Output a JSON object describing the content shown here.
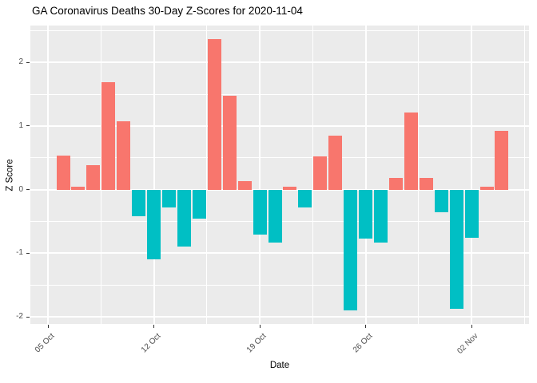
{
  "title": "GA Coronavirus Deaths 30-Day Z-Scores for 2020-11-04",
  "chart_data": {
    "type": "bar",
    "title": "GA Coronavirus Deaths 30-Day Z-Scores for 2020-11-04",
    "xlabel": "Date",
    "ylabel": "Z Score",
    "ylim": [
      -2.11,
      2.58
    ],
    "grid": true,
    "legend": "none",
    "y_major_ticks": [
      -2,
      -1,
      0,
      1,
      2
    ],
    "x_tick_labels": [
      "05 Oct",
      "12 Oct",
      "19 Oct",
      "26 Oct",
      "02 Nov"
    ],
    "x_tick_day_indices": [
      -1,
      6,
      13,
      20,
      27
    ],
    "dates": [
      "2020-10-06",
      "2020-10-07",
      "2020-10-08",
      "2020-10-09",
      "2020-10-10",
      "2020-10-11",
      "2020-10-12",
      "2020-10-13",
      "2020-10-14",
      "2020-10-15",
      "2020-10-16",
      "2020-10-17",
      "2020-10-18",
      "2020-10-19",
      "2020-10-20",
      "2020-10-21",
      "2020-10-22",
      "2020-10-23",
      "2020-10-24",
      "2020-10-25",
      "2020-10-26",
      "2020-10-27",
      "2020-10-28",
      "2020-10-29",
      "2020-10-30",
      "2020-10-31",
      "2020-11-01",
      "2020-11-02",
      "2020-11-03",
      "2020-11-04"
    ],
    "values": [
      0.53,
      0.05,
      0.39,
      1.69,
      1.08,
      -0.42,
      -1.1,
      -0.28,
      -0.89,
      -0.45,
      2.37,
      1.48,
      0.13,
      -0.7,
      -0.83,
      0.05,
      -0.28,
      0.52,
      0.85,
      -1.9,
      -0.77,
      -0.83,
      0.18,
      1.21,
      0.19,
      -0.35,
      -1.87,
      -0.76,
      0.05,
      0.93
    ],
    "positive_color": "#F8766D",
    "negative_color": "#00BFC4",
    "panel_background": "#EBEBEB",
    "grid_color": "#FFFFFF",
    "axis_text_color": "#4D4D4D",
    "tick_color": "#333333"
  }
}
